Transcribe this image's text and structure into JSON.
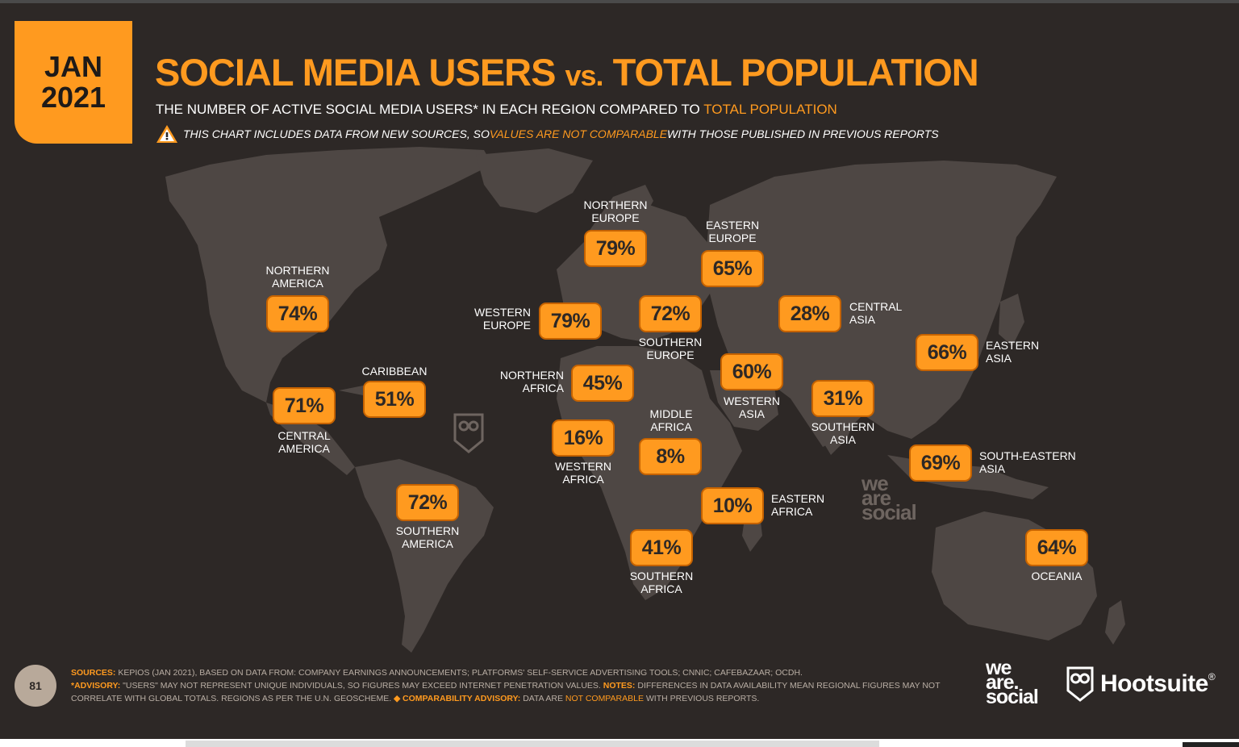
{
  "header": {
    "month": "JAN",
    "year": "2021",
    "title_part1": "SOCIAL MEDIA USERS ",
    "title_vs": "vs.",
    "title_part2": " TOTAL POPULATION",
    "subtitle_text": "THE NUMBER OF ACTIVE SOCIAL MEDIA USERS* IN EACH REGION COMPARED TO ",
    "subtitle_highlight": "TOTAL POPULATION",
    "warning_text1": "THIS CHART INCLUDES DATA FROM NEW SOURCES, SO ",
    "warning_highlight": "VALUES ARE NOT COMPARABLE",
    "warning_text2": " WITH THOSE PUBLISHED IN PREVIOUS REPORTS"
  },
  "regions": [
    {
      "value": "74%",
      "name_line1": "NORTHERN",
      "name_line2": "AMERICA"
    },
    {
      "value": "71%",
      "name_line1": "CENTRAL",
      "name_line2": "AMERICA"
    },
    {
      "value": "51%",
      "name_line1": "CARIBBEAN",
      "name_line2": ""
    },
    {
      "value": "72%",
      "name_line1": "SOUTHERN",
      "name_line2": "AMERICA"
    },
    {
      "value": "79%",
      "name_line1": "NORTHERN",
      "name_line2": "EUROPE"
    },
    {
      "value": "79%",
      "name_line1": "WESTERN",
      "name_line2": "EUROPE"
    },
    {
      "value": "72%",
      "name_line1": "SOUTHERN",
      "name_line2": "EUROPE"
    },
    {
      "value": "65%",
      "name_line1": "EASTERN",
      "name_line2": "EUROPE"
    },
    {
      "value": "45%",
      "name_line1": "NORTHERN",
      "name_line2": "AFRICA"
    },
    {
      "value": "16%",
      "name_line1": "WESTERN",
      "name_line2": "AFRICA"
    },
    {
      "value": "8%",
      "name_line1": "MIDDLE",
      "name_line2": "AFRICA"
    },
    {
      "value": "10%",
      "name_line1": "EASTERN",
      "name_line2": "AFRICA"
    },
    {
      "value": "41%",
      "name_line1": "SOUTHERN",
      "name_line2": "AFRICA"
    },
    {
      "value": "60%",
      "name_line1": "WESTERN",
      "name_line2": "ASIA"
    },
    {
      "value": "28%",
      "name_line1": "CENTRAL",
      "name_line2": "ASIA"
    },
    {
      "value": "31%",
      "name_line1": "SOUTHERN",
      "name_line2": "ASIA"
    },
    {
      "value": "66%",
      "name_line1": "EASTERN",
      "name_line2": "ASIA"
    },
    {
      "value": "69%",
      "name_line1": "SOUTH-EASTERN",
      "name_line2": "ASIA"
    },
    {
      "value": "64%",
      "name_line1": "OCEANIA",
      "name_line2": ""
    }
  ],
  "footer": {
    "page_number": "81",
    "sources_label": "SOURCES:",
    "sources_text": " KEPIOS (JAN 2021), BASED ON DATA FROM: COMPANY EARNINGS ANNOUNCEMENTS; PLATFORMS' SELF-SERVICE ADVERTISING TOOLS; CNNIC; CAFEBAZAAR; OCDH.",
    "advisory_label": "*ADVISORY:",
    "advisory_text": " \"USERS\" MAY NOT REPRESENT UNIQUE INDIVIDUALS, SO FIGURES MAY EXCEED INTERNET PENETRATION VALUES. ",
    "notes_label": "NOTES:",
    "notes_text": " DIFFERENCES IN DATA AVAILABILITY MEAN REGIONAL FIGURES MAY NOT CORRELATE WITH GLOBAL TOTALS. REGIONS AS PER THE U.N. GEOSCHEME. ",
    "comparability_label": "◆ COMPARABILITY ADVISORY:",
    "comparability_text": " DATA ARE ",
    "comparability_highlight": "NOT COMPARABLE",
    "comparability_end": " WITH PREVIOUS REPORTS."
  },
  "brands": {
    "we_are_social_line1": "we",
    "we_are_social_line2": "are.",
    "we_are_social_line3": "social",
    "hootsuite": "Hootsuite",
    "hootsuite_mark": "®"
  },
  "watermark": {
    "line1": "we",
    "line2": "are",
    "line3": "social"
  },
  "colors": {
    "accent": "#ff9a1f",
    "background": "#2d2826",
    "land": "#4e4744"
  },
  "icons": [
    "warning-icon",
    "owl-icon"
  ]
}
